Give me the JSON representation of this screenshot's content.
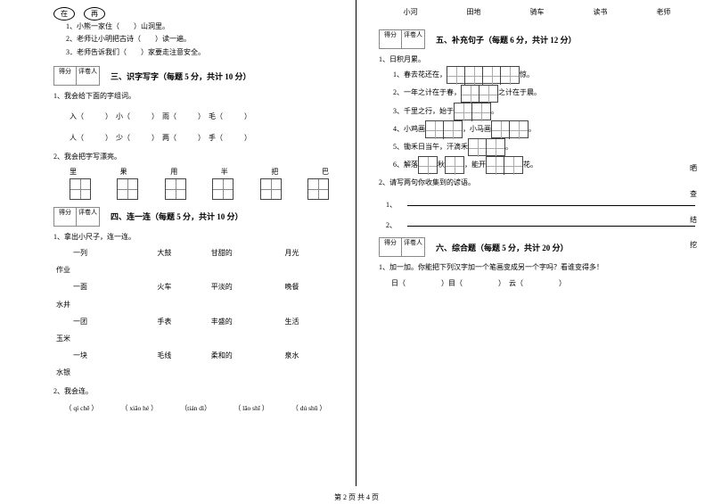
{
  "left": {
    "ovals": [
      "在",
      "再"
    ],
    "sentences": [
      "1、小熊一家住（　　）山洞里。",
      "2、老师让小明把古诗（　　）读一遍。",
      "3．老师告诉我们（　　）家要走注意安全。"
    ],
    "score_labels": [
      "得分",
      "评卷人"
    ],
    "section3_title": "三、识字写字（每题 5 分，共计 10 分）",
    "q1": "1、我会给下面的字组词。",
    "line1a": "入（　　　）　小（　　　）　雨（　　　）　毛（　　　）",
    "line1b": "人（　　　）　少（　　　）　两（　　　）　手（　　　）",
    "q2": "2、我会把字写漂亮。",
    "chars": [
      "里",
      "果",
      "用",
      "半",
      "把",
      "巴"
    ],
    "section4_title": "四、连一连（每题 5 分，共计 10 分）",
    "q4_1": "1、拿出小尺子，连一连。",
    "lian_rows": [
      [
        "一列",
        "大鼓",
        "甘甜的",
        "月光"
      ],
      [
        "一面",
        "火车",
        "平淡的",
        "晚餐"
      ],
      [
        "一团",
        "手表",
        "丰盛的",
        "生活"
      ],
      [
        "一块",
        "毛线",
        "柔和的",
        "泉水"
      ]
    ],
    "lian_tails": [
      "作业",
      "水井",
      "玉米",
      "水银"
    ],
    "q4_2": "2、我会连。",
    "pinyin": [
      "（ qí chē ）",
      "（ xiǎo hé ）",
      "（tián dì）",
      "（ lǎo shī ）",
      "（ dú shū ）"
    ]
  },
  "right": {
    "right_chars_r": [
      "晒",
      "查",
      "结",
      "挖"
    ],
    "top_words": [
      "小河",
      "田地",
      "骑车",
      "读书",
      "老师"
    ],
    "score_labels": [
      "得分",
      "评卷人"
    ],
    "section5_title": "五、补充句子（每题 6 分，共计 12 分）",
    "q5_0": "1、日积月累。",
    "fills": [
      {
        "pre": "1、春去花还在，",
        "boxes": 4,
        "post": "惊。"
      },
      {
        "pre": "2、一年之计在于春，",
        "boxes": 2,
        "post": "之计在于晨。"
      },
      {
        "pre": "3、千里之行，始于",
        "boxes": 2,
        "post": "。"
      },
      {
        "pre": "4、小鸡画",
        "boxes": 2,
        "mid": "，小马画",
        "boxes2": 2,
        "post": "。"
      },
      {
        "pre": "5、锄禾日当午，汗滴禾",
        "boxes": 2,
        "post": "。"
      },
      {
        "pre": "6、解落",
        "boxes": 1,
        "mid": "秋",
        "boxes2": 1,
        "mid2": "，能开",
        "boxes3": 2,
        "post": "花。"
      }
    ],
    "q5_2": "2、请写两句你收集到的谚语。",
    "lines_label1": "1、",
    "lines_label2": "2、",
    "section6_title": "六、综合题（每题 5 分，共计 20 分）",
    "q6_1": "1、加一加。你能把下列汉字加一个笔画变成另一个字吗？看谁变得多！",
    "q6_line": "日（　　　　　）目（　　　　　）　云（　　　　　）"
  },
  "footer": "第 2 页 共 4 页"
}
